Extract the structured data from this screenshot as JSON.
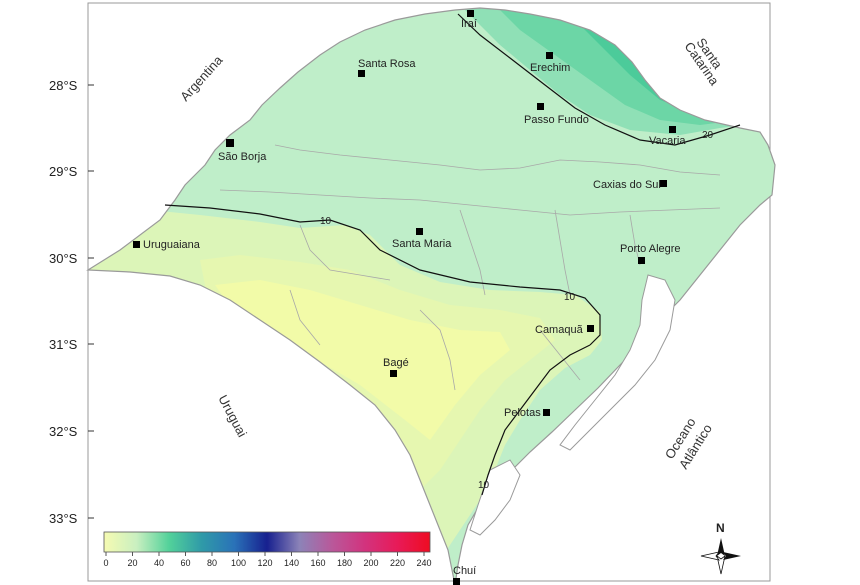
{
  "latitudes": [
    "28°S",
    "29°S",
    "30°S",
    "31°S",
    "32°S",
    "33°S"
  ],
  "countries": {
    "argentina": "Argentina",
    "uruguai": "Uruguai",
    "santa_catarina_1": "Santa",
    "santa_catarina_2": "Catarina",
    "oceano_1": "Oceano",
    "oceano_2": "Atlântico"
  },
  "cities": [
    "Iraí",
    "Erechim",
    "Santa Rosa",
    "Passo Fundo",
    "Vacaria",
    "São Borja",
    "Caxias do Sul",
    "Uruguaiana",
    "Santa Maria",
    "Porto Alegre",
    "Camaquã",
    "Bagé",
    "Pelotas",
    "Chuí"
  ],
  "isolines": [
    "10",
    "20",
    "10",
    "10"
  ],
  "legend": {
    "ticks": [
      "0",
      "20",
      "40",
      "60",
      "80",
      "100",
      "120",
      "140",
      "160",
      "180",
      "200",
      "220",
      "240"
    ],
    "colors": [
      "#f6fbb2",
      "#c9efc0",
      "#52d19a",
      "#2f9aa8",
      "#2a72b8",
      "#17208f",
      "#8c83b8",
      "#b9589a",
      "#d2337e",
      "#e81a58",
      "#ee0c22"
    ]
  },
  "north": "N"
}
